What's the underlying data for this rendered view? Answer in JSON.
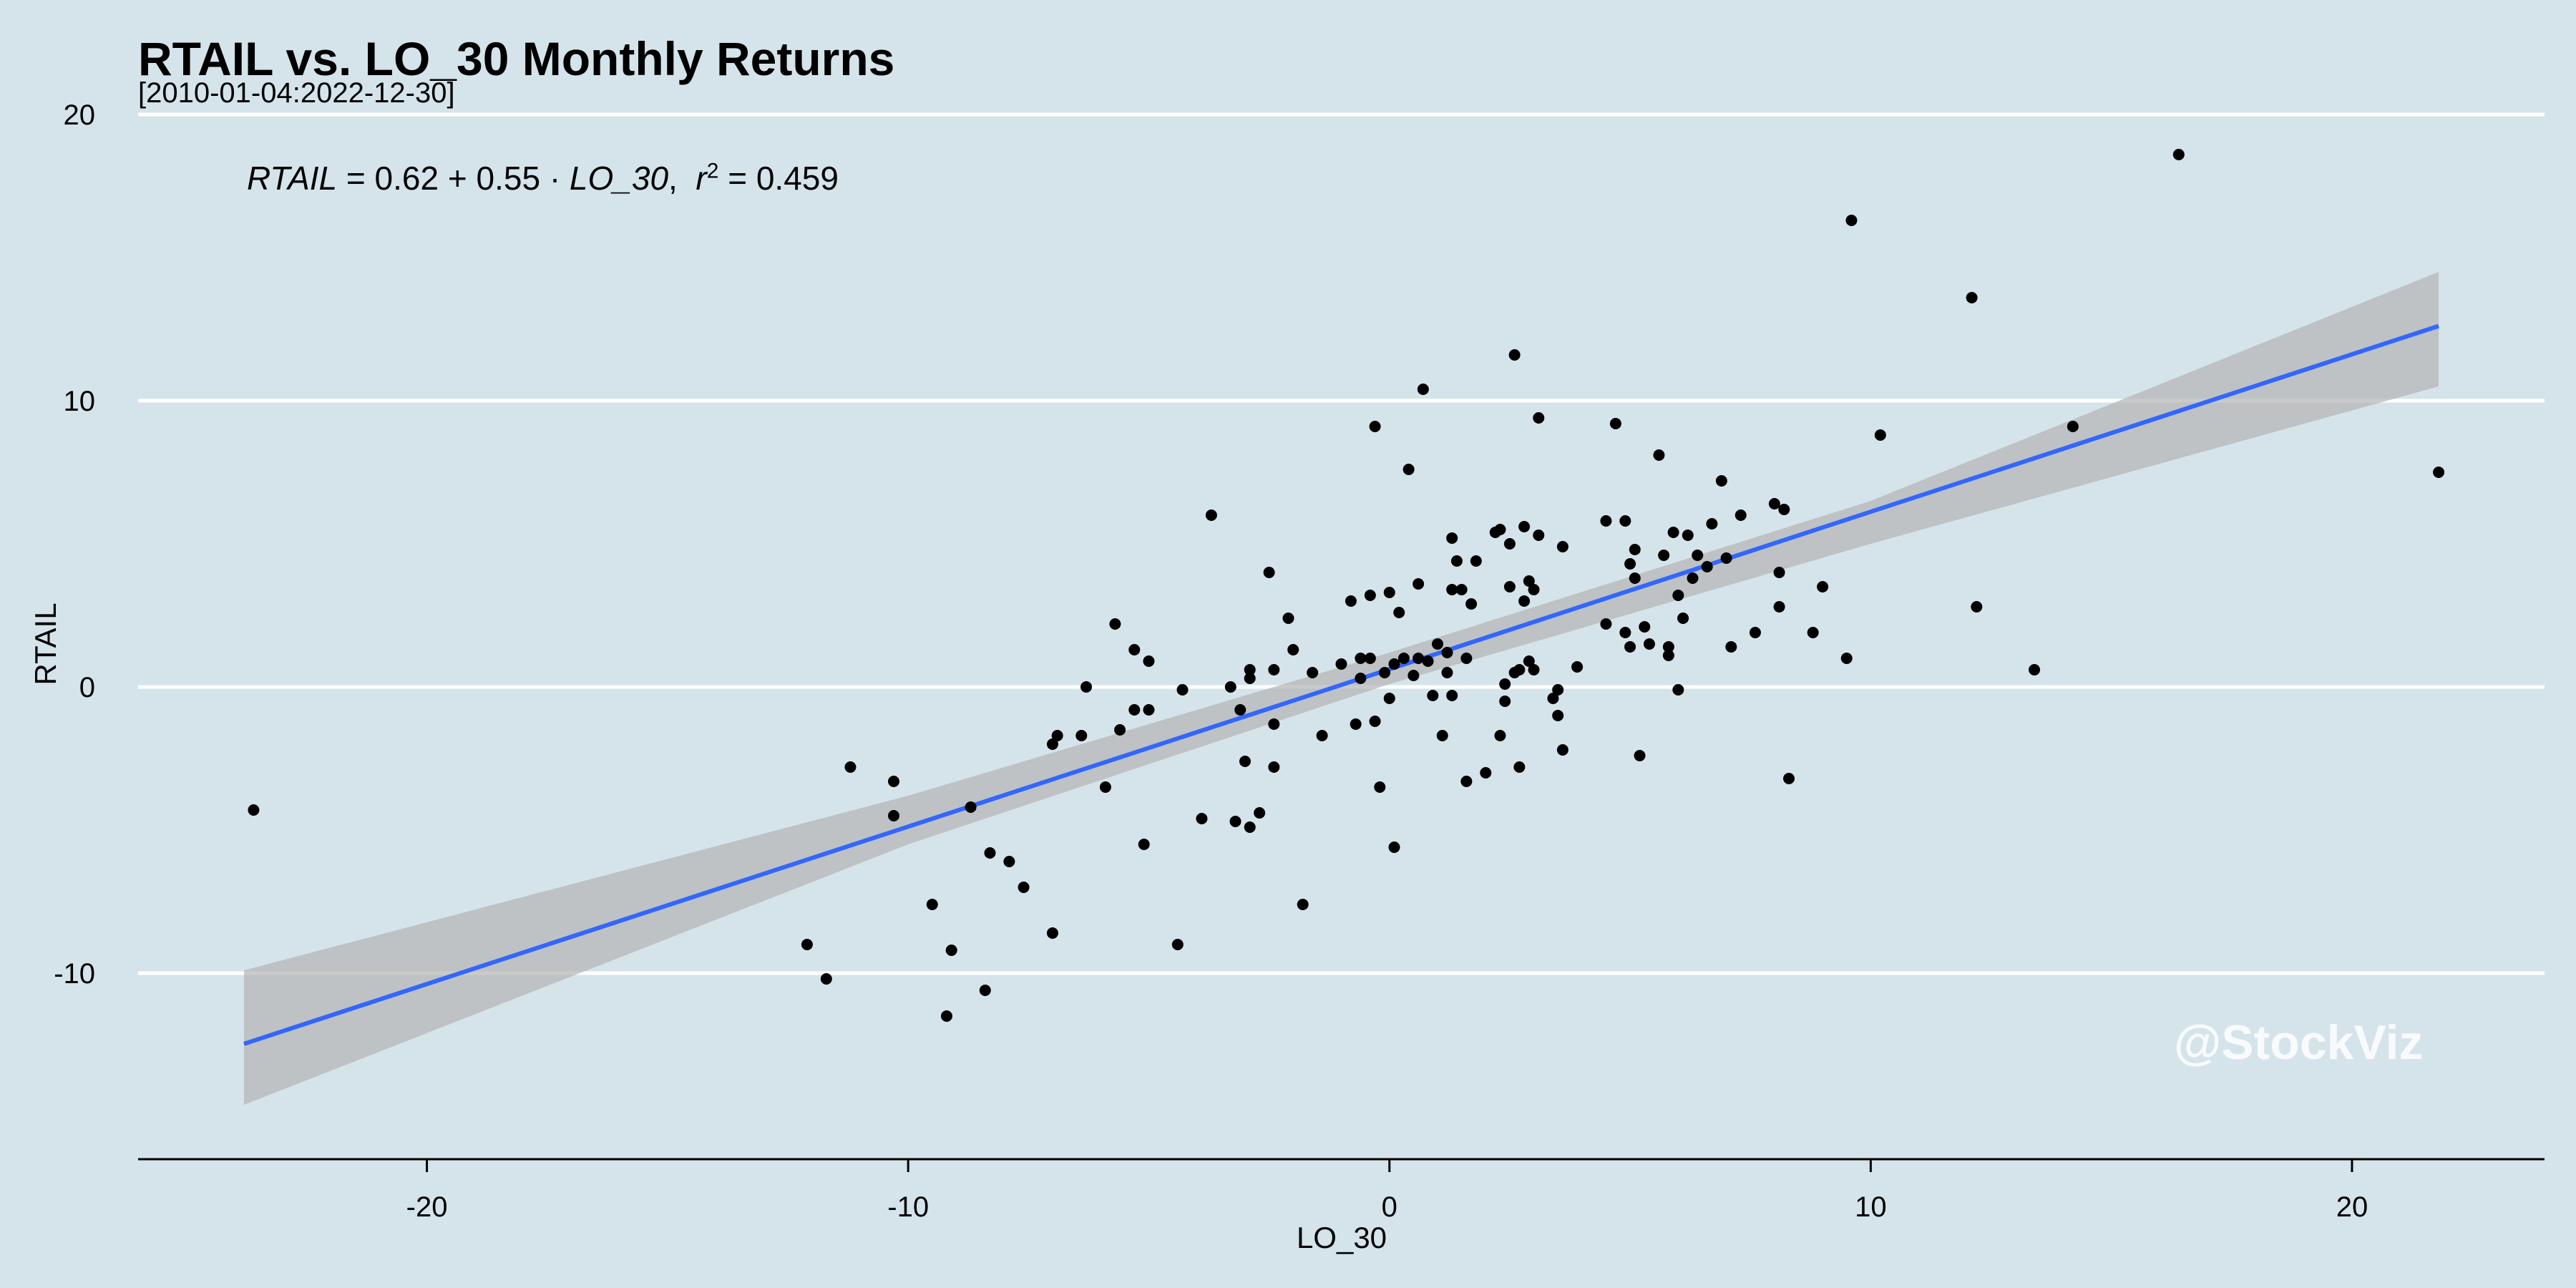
{
  "chart_data": {
    "type": "scatter",
    "title": "RTAIL vs. LO_30 Monthly Returns",
    "subtitle": "[2010-01-04:2022-12-30]",
    "xlabel": "LO_30",
    "ylabel": "RTAIL",
    "xlim": [
      -26,
      24
    ],
    "ylim": [
      -16.5,
      20.5
    ],
    "xticks": [
      -20,
      -10,
      0,
      10,
      20
    ],
    "yticks": [
      -10,
      0,
      10,
      20
    ],
    "grid": "horizontal",
    "legend": "none",
    "regression": {
      "intercept": 0.62,
      "slope": 0.55,
      "r2": 0.459,
      "x_range": [
        -23.8,
        21.8
      ],
      "equation_parts": {
        "lhs": "RTAIL",
        "rhs_prefix": "= 0.62 + 0.55 ·",
        "var": "LO_30",
        "r_symbol": "r",
        "r_exp": "2",
        "r_value": "= 0.459"
      },
      "ci_band": [
        [
          -23.8,
          -14.6,
          -9.9
        ],
        [
          -10,
          -5.5,
          -3.8
        ],
        [
          0,
          0.1,
          1.2
        ],
        [
          10,
          5.0,
          6.5
        ],
        [
          21.8,
          10.5,
          14.5
        ]
      ]
    },
    "points": [
      [
        -23.6,
        -4.3
      ],
      [
        -12.1,
        -9.0
      ],
      [
        -11.7,
        -10.2
      ],
      [
        -11.2,
        -2.8
      ],
      [
        -10.3,
        -3.3
      ],
      [
        -10.3,
        -4.5
      ],
      [
        -9.5,
        -7.6
      ],
      [
        -9.2,
        -11.5
      ],
      [
        -9.1,
        -9.2
      ],
      [
        -8.7,
        -4.2
      ],
      [
        -8.4,
        -10.6
      ],
      [
        -8.3,
        -5.8
      ],
      [
        -7.9,
        -6.1
      ],
      [
        -7.6,
        -7.0
      ],
      [
        -7.0,
        -8.6
      ],
      [
        -7.0,
        -2.0
      ],
      [
        -6.9,
        -1.7
      ],
      [
        -6.4,
        -1.7
      ],
      [
        -6.3,
        0.0
      ],
      [
        -5.9,
        -3.5
      ],
      [
        -5.7,
        2.2
      ],
      [
        -5.6,
        -1.5
      ],
      [
        -5.3,
        -0.8
      ],
      [
        -5.3,
        1.3
      ],
      [
        -5.1,
        -5.5
      ],
      [
        -5.0,
        0.9
      ],
      [
        -5.0,
        -0.8
      ],
      [
        -4.4,
        -9.0
      ],
      [
        -4.3,
        -0.1
      ],
      [
        -3.9,
        -4.6
      ],
      [
        -3.7,
        6.0
      ],
      [
        -3.3,
        0.0
      ],
      [
        -3.2,
        -4.7
      ],
      [
        -3.1,
        -0.8
      ],
      [
        -3.0,
        -2.6
      ],
      [
        -2.9,
        -4.9
      ],
      [
        -2.9,
        0.3
      ],
      [
        -2.9,
        0.6
      ],
      [
        -2.7,
        -4.4
      ],
      [
        -2.5,
        4.0
      ],
      [
        -2.4,
        -1.3
      ],
      [
        -2.4,
        -2.8
      ],
      [
        -2.4,
        0.6
      ],
      [
        -2.1,
        2.4
      ],
      [
        -2.0,
        1.3
      ],
      [
        -1.8,
        -7.6
      ],
      [
        -1.6,
        0.5
      ],
      [
        -1.4,
        -1.7
      ],
      [
        -1.0,
        0.8
      ],
      [
        -0.8,
        3.0
      ],
      [
        -0.7,
        -1.3
      ],
      [
        -0.6,
        0.3
      ],
      [
        -0.6,
        1.0
      ],
      [
        -0.4,
        1.0
      ],
      [
        -0.4,
        3.2
      ],
      [
        -0.3,
        9.1
      ],
      [
        -0.3,
        -1.2
      ],
      [
        -0.2,
        -3.5
      ],
      [
        -0.1,
        0.5
      ],
      [
        0.0,
        3.3
      ],
      [
        0.0,
        -0.4
      ],
      [
        0.1,
        0.8
      ],
      [
        0.1,
        -5.6
      ],
      [
        0.2,
        2.6
      ],
      [
        0.3,
        1.0
      ],
      [
        0.4,
        7.6
      ],
      [
        0.5,
        0.4
      ],
      [
        0.6,
        3.6
      ],
      [
        0.6,
        1.0
      ],
      [
        0.7,
        10.4
      ],
      [
        0.8,
        0.9
      ],
      [
        0.9,
        -0.3
      ],
      [
        1.0,
        1.5
      ],
      [
        1.1,
        -1.7
      ],
      [
        1.2,
        0.5
      ],
      [
        1.2,
        1.2
      ],
      [
        1.3,
        -0.3
      ],
      [
        1.3,
        3.4
      ],
      [
        1.3,
        5.2
      ],
      [
        1.4,
        4.4
      ],
      [
        1.5,
        3.4
      ],
      [
        1.6,
        -3.3
      ],
      [
        1.6,
        1.0
      ],
      [
        1.7,
        2.9
      ],
      [
        1.8,
        4.4
      ],
      [
        2.0,
        -3.0
      ],
      [
        2.2,
        5.4
      ],
      [
        2.3,
        -1.7
      ],
      [
        2.3,
        5.5
      ],
      [
        2.4,
        0.1
      ],
      [
        2.4,
        -0.5
      ],
      [
        2.5,
        3.5
      ],
      [
        2.5,
        5.0
      ],
      [
        2.6,
        11.6
      ],
      [
        2.6,
        0.5
      ],
      [
        2.7,
        -2.8
      ],
      [
        2.7,
        0.6
      ],
      [
        2.8,
        3.0
      ],
      [
        2.8,
        5.6
      ],
      [
        2.9,
        0.9
      ],
      [
        2.9,
        3.7
      ],
      [
        3.0,
        3.4
      ],
      [
        3.0,
        0.6
      ],
      [
        3.1,
        9.4
      ],
      [
        3.1,
        5.3
      ],
      [
        3.4,
        -0.4
      ],
      [
        3.5,
        -1.0
      ],
      [
        3.5,
        -0.1
      ],
      [
        3.6,
        4.9
      ],
      [
        3.6,
        -2.2
      ],
      [
        3.9,
        0.7
      ],
      [
        4.5,
        5.8
      ],
      [
        4.5,
        2.2
      ],
      [
        4.7,
        9.2
      ],
      [
        4.9,
        5.8
      ],
      [
        4.9,
        1.9
      ],
      [
        5.0,
        4.3
      ],
      [
        5.0,
        1.4
      ],
      [
        5.1,
        3.8
      ],
      [
        5.1,
        4.8
      ],
      [
        5.2,
        -2.4
      ],
      [
        5.3,
        2.1
      ],
      [
        5.4,
        1.5
      ],
      [
        5.6,
        8.1
      ],
      [
        5.7,
        4.6
      ],
      [
        5.8,
        1.1
      ],
      [
        5.8,
        1.4
      ],
      [
        5.9,
        5.4
      ],
      [
        6.0,
        3.2
      ],
      [
        6.0,
        -0.1
      ],
      [
        6.1,
        2.4
      ],
      [
        6.2,
        5.3
      ],
      [
        6.3,
        3.8
      ],
      [
        6.4,
        4.6
      ],
      [
        6.6,
        4.2
      ],
      [
        6.7,
        5.7
      ],
      [
        6.9,
        7.2
      ],
      [
        7.0,
        4.5
      ],
      [
        7.1,
        1.4
      ],
      [
        7.3,
        6.0
      ],
      [
        7.6,
        1.9
      ],
      [
        8.0,
        6.4
      ],
      [
        8.1,
        2.8
      ],
      [
        8.1,
        4.0
      ],
      [
        8.2,
        6.2
      ],
      [
        8.3,
        -3.2
      ],
      [
        8.8,
        1.9
      ],
      [
        9.0,
        3.5
      ],
      [
        9.5,
        1.0
      ],
      [
        9.6,
        16.3
      ],
      [
        10.2,
        8.8
      ],
      [
        12.1,
        13.6
      ],
      [
        12.2,
        2.8
      ],
      [
        13.4,
        0.6
      ],
      [
        14.2,
        9.1
      ],
      [
        16.4,
        18.6
      ],
      [
        21.8,
        7.5
      ]
    ],
    "colors": {
      "background": "#d5e4eb",
      "line": "#3366ff",
      "band": "#b3b3b3",
      "point": "#000000",
      "grid": "#ffffff"
    }
  },
  "watermark": "@StockViz"
}
